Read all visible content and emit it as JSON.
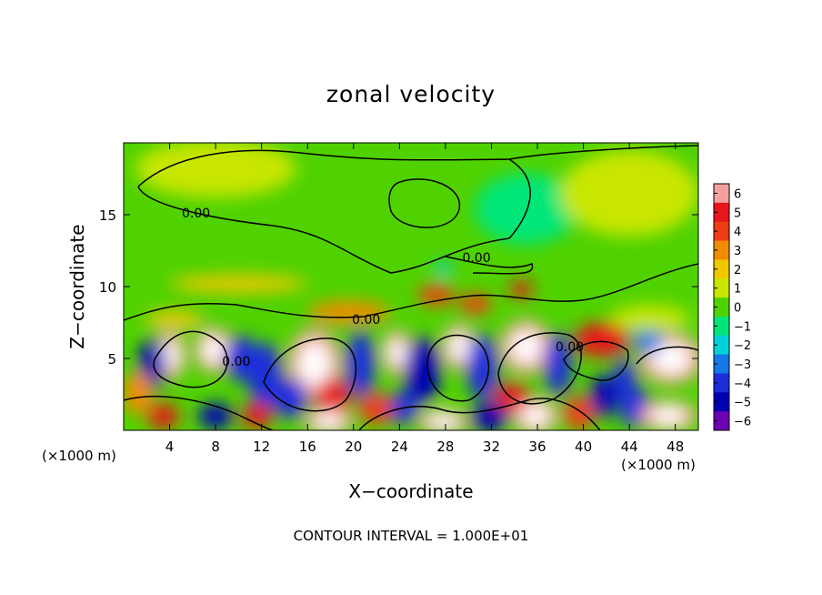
{
  "chart_data": {
    "type": "heatmap",
    "title": "zonal velocity",
    "xlabel": "X−coordinate",
    "ylabel": "Z−coordinate",
    "x_unit": "(×1000 m)",
    "z_unit": "(×1000 m)",
    "xlim": [
      0,
      50
    ],
    "ylim": [
      0,
      20
    ],
    "x_ticks": [
      4,
      8,
      12,
      16,
      20,
      24,
      28,
      32,
      36,
      40,
      44,
      48
    ],
    "y_ticks": [
      5,
      10,
      15
    ],
    "footer": "CONTOUR INTERVAL = 1.000E+01",
    "contour_labels": [
      {
        "text": "0.00",
        "x": 6.3,
        "z": 14.8
      },
      {
        "text": "0.00",
        "x": 30.7,
        "z": 11.7
      },
      {
        "text": "0.00",
        "x": 21.1,
        "z": 7.4
      },
      {
        "text": "0.00",
        "x": 9.8,
        "z": 4.5
      },
      {
        "text": "0.00",
        "x": 38.8,
        "z": 5.5
      }
    ],
    "colorbar": {
      "levels": [
        6,
        5,
        4,
        3,
        2,
        1,
        0,
        -1,
        -2,
        -3,
        -4,
        -5,
        -6
      ],
      "labels": [
        "6",
        "5",
        "4",
        "3",
        "2",
        "1",
        "0",
        "−1",
        "−2",
        "−3",
        "−4",
        "−5",
        "−6"
      ],
      "colors": [
        "#f4a0a0",
        "#e8141e",
        "#f03c14",
        "#f08c00",
        "#f0c800",
        "#c8e600",
        "#50d200",
        "#00e678",
        "#00d2dc",
        "#1478e6",
        "#1e2ddc",
        "#0000b4",
        "#6e00b4"
      ]
    },
    "field_features": [
      {
        "x": 4.0,
        "z": 5.2,
        "v": 6,
        "rx": 1.4,
        "rz": 1.7
      },
      {
        "x": 2.5,
        "z": 4.6,
        "v": -5,
        "rx": 1.2,
        "rz": 1.8
      },
      {
        "x": 7.8,
        "z": 5.6,
        "v": 6,
        "rx": 1.6,
        "rz": 1.6
      },
      {
        "x": 10.2,
        "z": 5.0,
        "v": -4,
        "rx": 1.4,
        "rz": 1.6
      },
      {
        "x": 12.3,
        "z": 3.8,
        "v": -4,
        "rx": 1.5,
        "rz": 2.3
      },
      {
        "x": 16.6,
        "z": 4.6,
        "v": 6,
        "rx": 2.3,
        "rz": 2.5
      },
      {
        "x": 18.2,
        "z": 2.3,
        "v": 5,
        "rx": 1.5,
        "rz": 1.4
      },
      {
        "x": 20.6,
        "z": 4.6,
        "v": -4,
        "rx": 1.3,
        "rz": 2.3
      },
      {
        "x": 23.8,
        "z": 5.4,
        "v": 6,
        "rx": 1.3,
        "rz": 1.6
      },
      {
        "x": 26.0,
        "z": 4.2,
        "v": -5,
        "rx": 1.6,
        "rz": 2.3
      },
      {
        "x": 29.2,
        "z": 5.8,
        "v": 6,
        "rx": 1.5,
        "rz": 1.6
      },
      {
        "x": 31.2,
        "z": 4.4,
        "v": -4,
        "rx": 1.4,
        "rz": 2.3
      },
      {
        "x": 35.0,
        "z": 5.8,
        "v": 6,
        "rx": 2.2,
        "rz": 1.9
      },
      {
        "x": 37.8,
        "z": 4.6,
        "v": -4,
        "rx": 1.2,
        "rz": 2.2
      },
      {
        "x": 41.6,
        "z": 6.3,
        "v": 5,
        "rx": 2.4,
        "rz": 1.2
      },
      {
        "x": 41.8,
        "z": 2.4,
        "v": -5,
        "rx": 1.2,
        "rz": 1.5
      },
      {
        "x": 43.6,
        "z": 3.6,
        "v": -4,
        "rx": 1.0,
        "rz": 1.4
      },
      {
        "x": 47.6,
        "z": 5.0,
        "v": 6,
        "rx": 2.8,
        "rz": 1.8
      },
      {
        "x": 45.6,
        "z": 6.3,
        "v": -3,
        "rx": 1.3,
        "rz": 1.0
      },
      {
        "x": 1.2,
        "z": 2.6,
        "v": 3,
        "rx": 1.3,
        "rz": 1.5
      },
      {
        "x": 3.4,
        "z": 1.0,
        "v": 5,
        "rx": 1.4,
        "rz": 0.9
      },
      {
        "x": 8.0,
        "z": 1.0,
        "v": -5,
        "rx": 1.5,
        "rz": 0.9
      },
      {
        "x": 11.6,
        "z": 1.0,
        "v": 5,
        "rx": 1.3,
        "rz": 0.9
      },
      {
        "x": 14.5,
        "z": 2.2,
        "v": -4,
        "rx": 1.5,
        "rz": 1.4
      },
      {
        "x": 17.8,
        "z": 0.6,
        "v": 6,
        "rx": 2.2,
        "rz": 0.9
      },
      {
        "x": 22.0,
        "z": 1.5,
        "v": 4,
        "rx": 1.6,
        "rz": 1.1
      },
      {
        "x": 24.4,
        "z": 1.6,
        "v": -4,
        "rx": 1.2,
        "rz": 1.2
      },
      {
        "x": 27.8,
        "z": 0.6,
        "v": 6,
        "rx": 2.2,
        "rz": 0.9
      },
      {
        "x": 31.8,
        "z": 0.9,
        "v": -5,
        "rx": 1.7,
        "rz": 1.0
      },
      {
        "x": 35.8,
        "z": 1.0,
        "v": 6,
        "rx": 2.0,
        "rz": 1.3
      },
      {
        "x": 33.8,
        "z": 2.3,
        "v": 5,
        "rx": 1.6,
        "rz": 1.0
      },
      {
        "x": 39.6,
        "z": 1.2,
        "v": 4,
        "rx": 1.3,
        "rz": 1.2
      },
      {
        "x": 44.5,
        "z": 1.6,
        "v": -4,
        "rx": 1.4,
        "rz": 1.4
      },
      {
        "x": 47.4,
        "z": 1.0,
        "v": 6,
        "rx": 2.5,
        "rz": 1.1
      },
      {
        "x": 4.4,
        "z": 7.7,
        "v": 2,
        "rx": 2.6,
        "rz": 0.6
      },
      {
        "x": 19.6,
        "z": 8.2,
        "v": 3,
        "rx": 3.6,
        "rz": 0.8
      },
      {
        "x": 27.2,
        "z": 9.4,
        "v": 4,
        "rx": 1.6,
        "rz": 0.7
      },
      {
        "x": 30.6,
        "z": 8.8,
        "v": 4,
        "rx": 1.4,
        "rz": 0.7
      },
      {
        "x": 34.6,
        "z": 9.8,
        "v": 5,
        "rx": 1.0,
        "rz": 0.6
      },
      {
        "x": 45.8,
        "z": 7.8,
        "v": 1,
        "rx": 3.5,
        "rz": 0.9
      },
      {
        "x": 10.0,
        "z": 10.2,
        "v": 2,
        "rx": 6.0,
        "rz": 0.6
      },
      {
        "x": 27.8,
        "z": 11.2,
        "v": -2,
        "rx": 0.8,
        "rz": 0.5
      },
      {
        "x": 35.0,
        "z": 15.4,
        "v": -1,
        "rx": 4.5,
        "rz": 2.5
      },
      {
        "x": 8.0,
        "z": 18.2,
        "v": 1,
        "rx": 7.0,
        "rz": 2.0
      },
      {
        "x": 44.0,
        "z": 16.5,
        "v": 1,
        "rx": 6.0,
        "rz": 3.0
      }
    ]
  }
}
